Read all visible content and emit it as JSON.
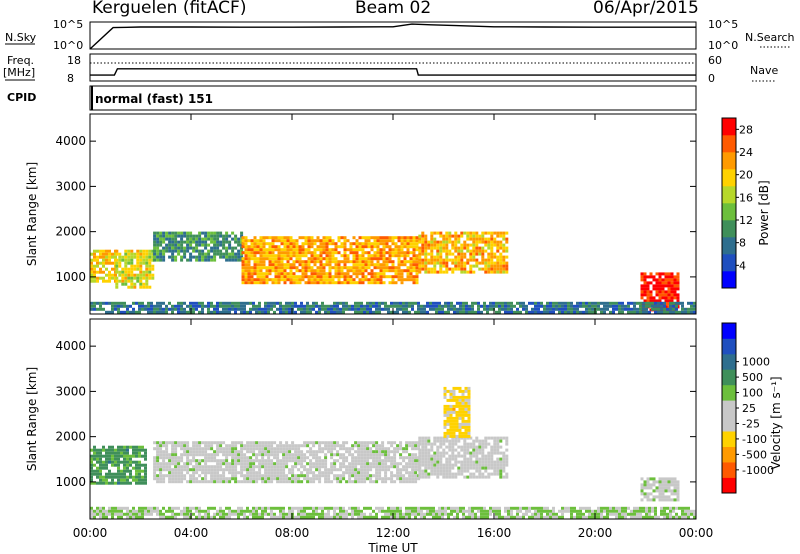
{
  "header": {
    "station": "Kerguelen (fitACF)",
    "beam": "Beam 02",
    "date": "06/Apr/2015"
  },
  "panels": {
    "nsky": {
      "label": "N.Sky",
      "ticks": [
        "10^5",
        "10^0"
      ]
    },
    "nsearch": {
      "label": "N.Search",
      "ticks": [
        "10^5",
        "10^0"
      ]
    },
    "freq": {
      "label": "Freq.",
      "unit": "[MHz]",
      "ticks": [
        "18",
        "8"
      ]
    },
    "nave": {
      "label": "Nave",
      "ticks": [
        "60",
        "0"
      ]
    },
    "cpid": {
      "label": "CPID",
      "text": "normal (fast) 151"
    }
  },
  "colors": {
    "power": [
      "#0000ff",
      "#1f4fbf",
      "#2e6e8e",
      "#3f8f5a",
      "#6cbf3c",
      "#b7d82a",
      "#ffd200",
      "#ff9a00",
      "#ff5a00",
      "#ff0000"
    ],
    "velocity": [
      "#ff0000",
      "#ff5a00",
      "#ff9a00",
      "#ffd200",
      "#c8c8c8",
      "#c8c8c8",
      "#6cbf3c",
      "#3f8f5a",
      "#2e6e8e",
      "#1f4fbf",
      "#0000ff"
    ],
    "power_line": "#000000"
  },
  "chart_data": [
    {
      "type": "line",
      "name": "parameter-strips",
      "series": [
        {
          "name": "N.Sky",
          "x": [
            "00:00",
            "00:55",
            "02:00",
            "04:00",
            "06:00",
            "08:00",
            "10:00",
            "12:00",
            "12:45",
            "13:30",
            "14:30",
            "16:00",
            "18:00",
            "20:00",
            "22:00",
            "24:00"
          ],
          "values": [
            1,
            9000,
            12000,
            12000,
            11000,
            11000,
            12000,
            13000,
            40000,
            30000,
            22000,
            13000,
            12000,
            11000,
            11000,
            11000
          ]
        },
        {
          "name": "N.Search",
          "x": [
            "00:00",
            "24:00"
          ],
          "values": [
            0,
            0
          ]
        },
        {
          "name": "Freq.",
          "x": [
            "00:00",
            "00:58",
            "01:05",
            "12:56",
            "13:00",
            "24:00"
          ],
          "values": [
            10.2,
            10.2,
            12.5,
            12.5,
            10.2,
            10.2
          ]
        },
        {
          "name": "Nave",
          "x": [
            "00:00",
            "24:00"
          ],
          "values": [
            40,
            40
          ]
        }
      ],
      "xlim": [
        "00:00",
        "24:00"
      ]
    },
    {
      "type": "heatmap",
      "name": "power",
      "ylabel": "Slant Range [km]",
      "xlabel": "",
      "x_ticks": [
        "00:00",
        "04:00",
        "08:00",
        "12:00",
        "16:00",
        "20:00",
        "00:00"
      ],
      "y_ticks": [
        1000,
        2000,
        3000,
        4000
      ],
      "ylim": [
        180,
        4600
      ],
      "colorbar": {
        "label": "Power [dB]",
        "ticks": [
          4,
          8,
          12,
          16,
          20,
          24,
          28
        ],
        "range": [
          0,
          30
        ]
      },
      "regions": [
        {
          "t0": 0.0,
          "t1": 1.0,
          "r0": 900,
          "r1": 1600,
          "value": 20
        },
        {
          "t0": 1.0,
          "t1": 2.5,
          "r0": 800,
          "r1": 1600,
          "value": 18
        },
        {
          "t0": 2.5,
          "t1": 6.0,
          "r0": 1400,
          "r1": 2000,
          "value": 10
        },
        {
          "t0": 6.0,
          "t1": 13.0,
          "r0": 900,
          "r1": 1900,
          "value": 22
        },
        {
          "t0": 13.0,
          "t1": 16.5,
          "r0": 1100,
          "r1": 2000,
          "value": 21
        },
        {
          "t0": 21.8,
          "t1": 23.3,
          "r0": 300,
          "r1": 1100,
          "value": 28
        },
        {
          "t0": 0.0,
          "t1": 24.0,
          "r0": 200,
          "r1": 450,
          "value": 8
        }
      ]
    },
    {
      "type": "heatmap",
      "name": "velocity",
      "ylabel": "Slant Range [km]",
      "xlabel": "Time UT",
      "x_ticks": [
        "00:00",
        "04:00",
        "08:00",
        "12:00",
        "16:00",
        "20:00",
        "00:00"
      ],
      "y_ticks": [
        1000,
        2000,
        3000,
        4000
      ],
      "ylim": [
        180,
        4600
      ],
      "colorbar": {
        "label": "Velocity [m s⁻¹]",
        "ticks": [
          "-1000",
          "-500",
          "-100",
          "-25",
          "25",
          "100",
          "500",
          "1000"
        ],
        "range": [
          -1200,
          1200
        ]
      },
      "regions": [
        {
          "t0": 0.0,
          "t1": 2.2,
          "r0": 1000,
          "r1": 1800,
          "value": 400
        },
        {
          "t0": 2.5,
          "t1": 13.0,
          "r0": 1000,
          "r1": 1900,
          "value": 0
        },
        {
          "t0": 13.0,
          "t1": 16.5,
          "r0": 1100,
          "r1": 2000,
          "value": -20
        },
        {
          "t0": 14.0,
          "t1": 15.0,
          "r0": 2000,
          "r1": 3100,
          "value": -400
        },
        {
          "t0": 21.8,
          "t1": 23.3,
          "r0": 600,
          "r1": 1100,
          "value": 0
        },
        {
          "t0": 0.0,
          "t1": 24.0,
          "r0": 200,
          "r1": 450,
          "value": 120
        }
      ]
    }
  ]
}
